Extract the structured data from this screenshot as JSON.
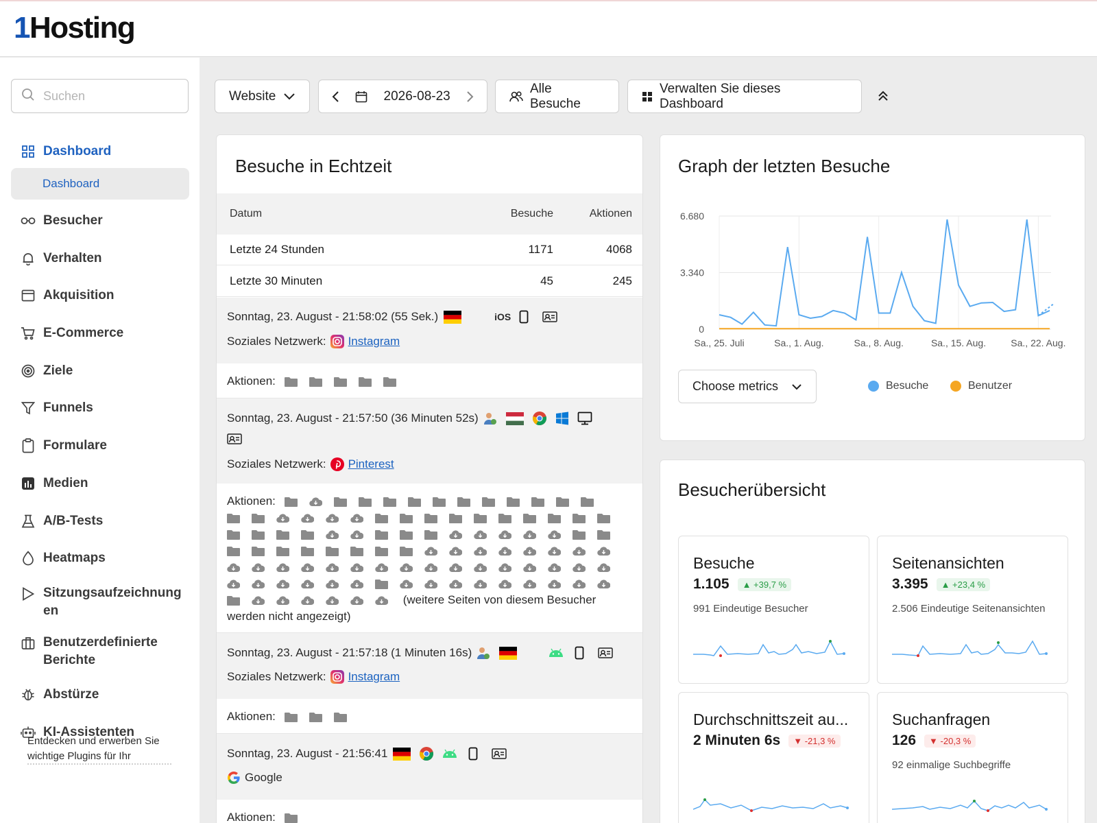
{
  "brand": {
    "one": "1",
    "rest": "Hosting"
  },
  "search": {
    "placeholder": "Suchen"
  },
  "sidebar": {
    "items": [
      {
        "label": "Dashboard",
        "icon": "dashboard-grid-icon"
      },
      {
        "label": "Dashboard",
        "icon": ""
      },
      {
        "label": "Besucher",
        "icon": "binoculars-icon"
      },
      {
        "label": "Verhalten",
        "icon": "bell-icon"
      },
      {
        "label": "Akquisition",
        "icon": "browser-window-icon"
      },
      {
        "label": "E-Commerce",
        "icon": "cart-icon"
      },
      {
        "label": "Ziele",
        "icon": "target-icon"
      },
      {
        "label": "Funnels",
        "icon": "funnel-icon"
      },
      {
        "label": "Formulare",
        "icon": "clipboard-icon"
      },
      {
        "label": "Medien",
        "icon": "media-chart-icon"
      },
      {
        "label": "A/B-Tests",
        "icon": "flask-icon"
      },
      {
        "label": "Heatmaps",
        "icon": "drop-icon"
      },
      {
        "label": "Sitzungsaufzeichnung en",
        "icon": "play-icon"
      },
      {
        "label": "Benutzerdefinierte Berichte",
        "icon": "briefcase-icon"
      },
      {
        "label": "Abstürze",
        "icon": "bug-icon"
      },
      {
        "label": "KI-Assistenten",
        "icon": "robot-icon"
      }
    ],
    "promo": "Entdecken und erwerben Sie wichtige Plugins für Ihr"
  },
  "toolbar": {
    "site": "Website",
    "date": "2026-08-23",
    "segment": "Alle Besuche",
    "manage": "Verwalten Sie dieses Dashboard"
  },
  "realtime": {
    "title": "Besuche in Echtzeit",
    "headers": [
      "Datum",
      "Besuche",
      "Aktionen"
    ],
    "rows": [
      [
        "Letzte 24 Stunden",
        "1171",
        "4068"
      ],
      [
        "Letzte 30 Minuten",
        "45",
        "245"
      ]
    ],
    "visits": [
      {
        "time": "Sonntag, 23. August - 21:58:02 (55 Sek.)",
        "os": "iOS",
        "source_label": "Soziales Netzwerk:",
        "source": "Instagram",
        "actions_label": "Aktionen:"
      },
      {
        "time": "Sonntag, 23. August - 21:57:50 (36 Minuten 52s)",
        "source_label": "Soziales Netzwerk:",
        "source": "Pinterest",
        "actions_label": "Aktionen:",
        "more": "(weitere Seiten von diesem Besucher werden nicht angezeigt)"
      },
      {
        "time": "Sonntag, 23. August - 21:57:18 (1 Minuten 16s)",
        "source_label": "Soziales Netzwerk:",
        "source": "Instagram",
        "actions_label": "Aktionen:"
      },
      {
        "time": "Sonntag, 23. August - 21:56:41",
        "source": "Google",
        "actions_label": "Aktionen:"
      }
    ]
  },
  "graph": {
    "title": "Graph der letzten Besuche",
    "metrics_button": "Choose metrics",
    "legend": [
      {
        "name": "Besuche",
        "color": "#5aaaf0"
      },
      {
        "name": "Benutzer",
        "color": "#f5a623"
      }
    ]
  },
  "chart_data": {
    "type": "line",
    "x": [
      "Sa., 25. Juli",
      "26",
      "27",
      "28",
      "29",
      "30",
      "31",
      "Sa., 1. Aug.",
      "2",
      "3",
      "4",
      "5",
      "6",
      "7",
      "Sa., 8. Aug.",
      "9",
      "10",
      "11",
      "12",
      "13",
      "14",
      "Sa., 15. Aug.",
      "16",
      "17",
      "18",
      "19",
      "20",
      "21",
      "Sa., 22. Aug.",
      "23"
    ],
    "xticks": [
      "Sa., 25. Juli",
      "Sa., 1. Aug.",
      "Sa., 8. Aug.",
      "Sa., 15. Aug.",
      "Sa., 22. Aug."
    ],
    "yticks": [
      "0",
      "3.340",
      "6.680"
    ],
    "ylim": [
      0,
      6680
    ],
    "series": [
      {
        "name": "Besuche",
        "color": "#5aaaf0",
        "values": [
          850,
          700,
          300,
          1000,
          250,
          200,
          4850,
          850,
          650,
          750,
          1100,
          950,
          550,
          5450,
          950,
          950,
          3350,
          1350,
          500,
          350,
          6480,
          2600,
          1350,
          1550,
          1580,
          1050,
          1150,
          6480,
          800,
          1100
        ]
      },
      {
        "name": "Benutzer",
        "color": "#f5a623",
        "values": [
          30,
          30,
          30,
          30,
          30,
          30,
          30,
          30,
          30,
          30,
          30,
          30,
          30,
          30,
          30,
          30,
          30,
          30,
          30,
          30,
          30,
          30,
          30,
          30,
          30,
          30,
          30,
          30,
          30,
          30
        ]
      }
    ]
  },
  "overview": {
    "title": "Besucherübersicht",
    "kpis": [
      {
        "title": "Besuche",
        "value": "1.105",
        "delta": "+39,7 %",
        "dir": "up",
        "sub": "991 Eindeutige Besucher"
      },
      {
        "title": "Seitenansichten",
        "value": "3.395",
        "delta": "+23,4 %",
        "dir": "up",
        "sub": "2.506 Eindeutige Seitenansichten"
      },
      {
        "title": "Durchschnittszeit au...",
        "value": "2 Minuten 6s",
        "delta": "-21,3 %",
        "dir": "down",
        "sub": ""
      },
      {
        "title": "Suchanfragen",
        "value": "126",
        "delta": "-20,3 %",
        "dir": "down",
        "sub": "92 einmalige Suchbegriffe"
      }
    ]
  }
}
